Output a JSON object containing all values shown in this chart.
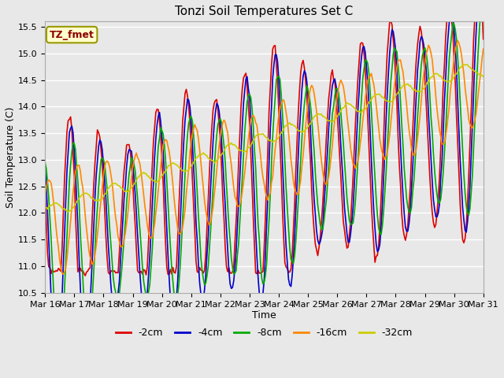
{
  "title": "Tonzi Soil Temperatures Set C",
  "xlabel": "Time",
  "ylabel": "Soil Temperature (C)",
  "ylim": [
    10.5,
    15.6
  ],
  "xlim": [
    0,
    360
  ],
  "annotation_text": "TZ_fmet",
  "annotation_color": "#8B0000",
  "annotation_bg": "#FFFFCC",
  "series_labels": [
    "-2cm",
    "-4cm",
    "-8cm",
    "-16cm",
    "-32cm"
  ],
  "series_colors": [
    "#DD0000",
    "#0000CC",
    "#00AA00",
    "#FF8800",
    "#CCCC00"
  ],
  "line_widths": [
    1.2,
    1.2,
    1.2,
    1.2,
    1.2
  ],
  "xtick_labels": [
    "Mar 16",
    "Mar 17",
    "Mar 18",
    "Mar 19",
    "Mar 20",
    "Mar 21",
    "Mar 22",
    "Mar 23",
    "Mar 24",
    "Mar 25",
    "Mar 26",
    "Mar 27",
    "Mar 28",
    "Mar 29",
    "Mar 30",
    "Mar 31"
  ],
  "bg_color": "#E0E0E0",
  "plot_bg_color": "#E8E8E8",
  "grid_color": "#FFFFFF",
  "font_size": 8,
  "title_fontsize": 11
}
